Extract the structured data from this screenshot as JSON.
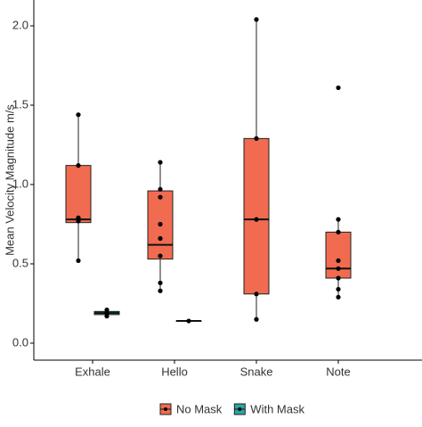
{
  "chart_data": {
    "type": "box",
    "y_label": "Mean Velocity Magnitude m/s",
    "categories": [
      "Exhale",
      "Hello",
      "Snake",
      "Note"
    ],
    "ylim": [
      -0.107,
      2.163
    ],
    "yticks": [
      {
        "value": 0,
        "label": "0.0"
      },
      0.5,
      {
        "value": 1,
        "label": "1.0"
      },
      1.5,
      {
        "value": 2,
        "label": "2.0"
      }
    ],
    "legend": "bottom",
    "series": [
      {
        "name": "No Mask",
        "color": "#f06b4f",
        "boxes": [
          {
            "min": 0.52,
            "q1": 0.76,
            "median": 0.78,
            "q3": 1.12,
            "max": 1.44,
            "points": [
              1.44,
              1.12,
              0.79,
              0.77,
              0.52
            ]
          },
          {
            "min": 0.33,
            "q1": 0.53,
            "median": 0.62,
            "q3": 0.96,
            "max": 1.14,
            "points": [
              1.14,
              0.97,
              0.92,
              0.75,
              0.66,
              0.55,
              0.38,
              0.33
            ]
          },
          {
            "min": 0.15,
            "q1": 0.31,
            "median": 0.78,
            "q3": 1.29,
            "max": 2.04,
            "points": [
              2.04,
              1.29,
              0.78,
              0.31,
              0.15
            ]
          },
          {
            "min": 0.29,
            "q1": 0.41,
            "median": 0.47,
            "q3": 0.7,
            "max": 0.78,
            "points": [
              1.61,
              0.78,
              0.7,
              0.52,
              0.47,
              0.41,
              0.34,
              0.29
            ]
          }
        ]
      },
      {
        "name": "With Mask",
        "color": "#2aa5a5",
        "boxes": [
          {
            "min": 0.17,
            "q1": 0.18,
            "median": 0.19,
            "q3": 0.2,
            "max": 0.21,
            "points": [
              0.21,
              0.19,
              0.17
            ]
          },
          {
            "min": 0.14,
            "q1": 0.14,
            "median": 0.14,
            "q3": 0.14,
            "max": 0.14,
            "points": [
              0.14
            ]
          },
          null,
          null
        ]
      }
    ]
  }
}
